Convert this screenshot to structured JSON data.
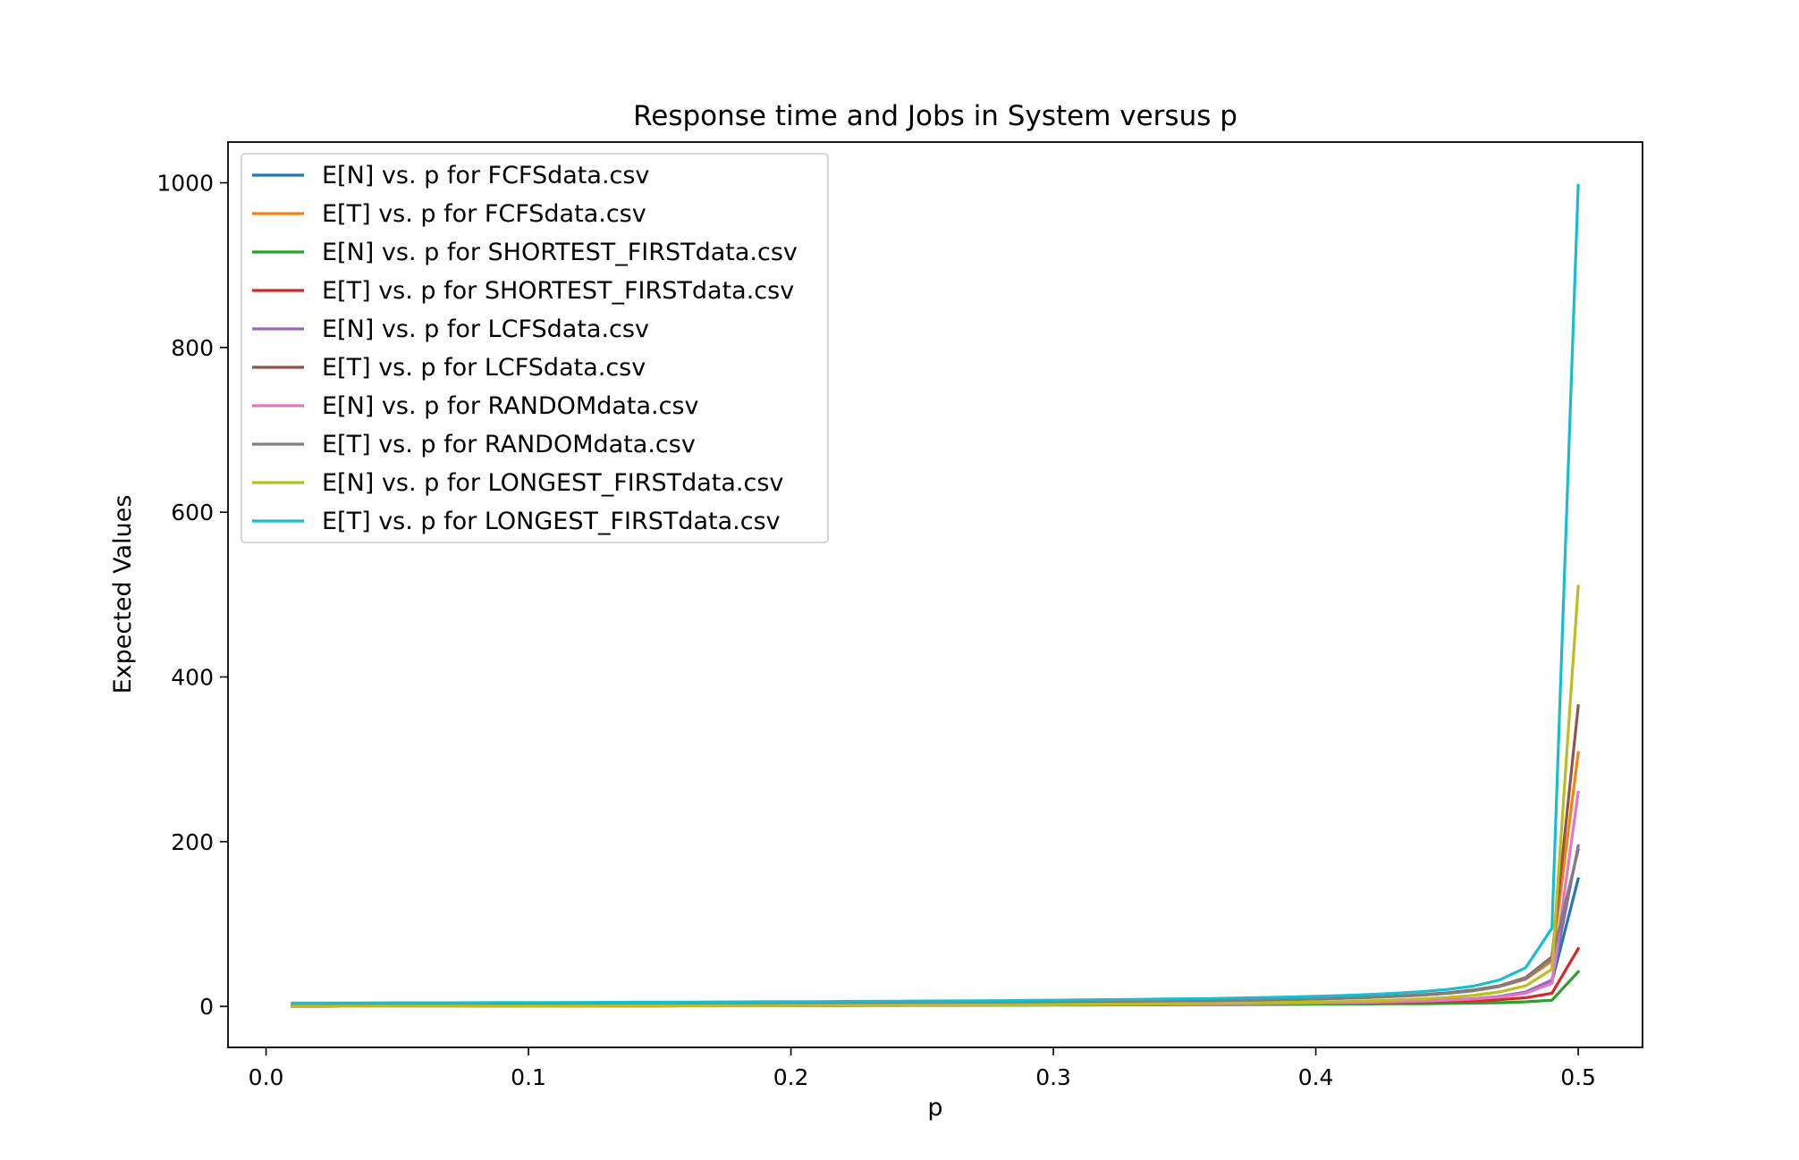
{
  "chart_data": {
    "type": "line",
    "title": "Response time and Jobs in System versus p",
    "xlabel": "p",
    "ylabel": "Expected Values",
    "xlim": [
      -0.0145,
      0.5245
    ],
    "ylim": [
      -49.8,
      1049.4
    ],
    "xticks": [
      0.0,
      0.1,
      0.2,
      0.3,
      0.4,
      0.5
    ],
    "xtick_labels": [
      "0.0",
      "0.1",
      "0.2",
      "0.3",
      "0.4",
      "0.5"
    ],
    "yticks": [
      0,
      200,
      400,
      600,
      800,
      1000
    ],
    "ytick_labels": [
      "0",
      "200",
      "400",
      "600",
      "800",
      "1000"
    ],
    "grid": false,
    "legend_position": "upper-left",
    "x": [
      0.01,
      0.02,
      0.03,
      0.04,
      0.05,
      0.06,
      0.07,
      0.08,
      0.09,
      0.1,
      0.11,
      0.12,
      0.13,
      0.14,
      0.15,
      0.16,
      0.17,
      0.18,
      0.19,
      0.2,
      0.21,
      0.22,
      0.23,
      0.24,
      0.25,
      0.26,
      0.27,
      0.28,
      0.29,
      0.3,
      0.31,
      0.32,
      0.33,
      0.34,
      0.35,
      0.36,
      0.37,
      0.38,
      0.39,
      0.4,
      0.41,
      0.42,
      0.43,
      0.44,
      0.45,
      0.46,
      0.47,
      0.48,
      0.49,
      0.5
    ],
    "series": [
      {
        "name": "E[N] vs. p for FCFSdata.csv",
        "color": "#1f77b4",
        "values": [
          0.1,
          0.1,
          0.2,
          0.2,
          0.2,
          0.3,
          0.3,
          0.4,
          0.4,
          0.5,
          0.5,
          0.6,
          0.6,
          0.7,
          0.7,
          0.8,
          0.9,
          0.9,
          1.0,
          1.1,
          1.1,
          1.2,
          1.3,
          1.4,
          1.5,
          1.6,
          1.7,
          1.8,
          1.9,
          2.0,
          2.1,
          2.3,
          2.4,
          2.6,
          2.8,
          3.0,
          3.2,
          3.5,
          3.8,
          4.1,
          4.5,
          5.0,
          5.6,
          6.4,
          7.4,
          8.9,
          11.5,
          16.5,
          30.0,
          155
        ]
      },
      {
        "name": "E[T] vs. p for FCFSdata.csv",
        "color": "#ff7f0e",
        "values": [
          2.0,
          2.1,
          2.1,
          2.2,
          2.2,
          2.3,
          2.3,
          2.4,
          2.5,
          2.5,
          2.6,
          2.7,
          2.7,
          2.8,
          2.9,
          3.0,
          3.1,
          3.2,
          3.3,
          3.4,
          3.5,
          3.6,
          3.7,
          3.9,
          4.0,
          4.2,
          4.3,
          4.5,
          4.7,
          4.9,
          5.1,
          5.4,
          5.7,
          6.0,
          6.3,
          6.7,
          7.1,
          7.6,
          8.2,
          8.9,
          9.7,
          10.7,
          12.0,
          13.6,
          15.8,
          19.0,
          24.0,
          33.0,
          55.0,
          308
        ]
      },
      {
        "name": "E[N] vs. p for SHORTEST_FIRSTdata.csv",
        "color": "#2ca02c",
        "values": [
          0.1,
          0.1,
          0.2,
          0.2,
          0.2,
          0.3,
          0.3,
          0.3,
          0.4,
          0.4,
          0.5,
          0.5,
          0.6,
          0.6,
          0.6,
          0.7,
          0.7,
          0.8,
          0.8,
          0.9,
          0.9,
          1.0,
          1.0,
          1.1,
          1.2,
          1.2,
          1.3,
          1.4,
          1.4,
          1.5,
          1.6,
          1.7,
          1.8,
          1.9,
          2.0,
          2.1,
          2.2,
          2.3,
          2.4,
          2.6,
          2.7,
          2.9,
          3.1,
          3.3,
          3.6,
          4.0,
          4.5,
          5.5,
          7.5,
          42
        ]
      },
      {
        "name": "E[T] vs. p for SHORTEST_FIRSTdata.csv",
        "color": "#d62728",
        "values": [
          2.0,
          2.0,
          2.1,
          2.1,
          2.1,
          2.2,
          2.2,
          2.2,
          2.3,
          2.3,
          2.3,
          2.4,
          2.4,
          2.5,
          2.5,
          2.5,
          2.6,
          2.6,
          2.7,
          2.7,
          2.8,
          2.8,
          2.9,
          2.9,
          3.0,
          3.0,
          3.1,
          3.2,
          3.2,
          3.3,
          3.4,
          3.5,
          3.6,
          3.7,
          3.8,
          3.9,
          4.0,
          4.2,
          4.3,
          4.5,
          4.7,
          4.9,
          5.2,
          5.6,
          6.1,
          6.8,
          8.0,
          10.5,
          16.0,
          70
        ]
      },
      {
        "name": "E[N] vs. p for LCFSdata.csv",
        "color": "#9467bd",
        "values": [
          0.1,
          0.1,
          0.2,
          0.2,
          0.2,
          0.3,
          0.3,
          0.4,
          0.4,
          0.5,
          0.5,
          0.6,
          0.6,
          0.7,
          0.7,
          0.8,
          0.9,
          0.9,
          1.0,
          1.1,
          1.1,
          1.2,
          1.3,
          1.4,
          1.5,
          1.6,
          1.7,
          1.8,
          1.9,
          2.0,
          2.2,
          2.3,
          2.5,
          2.6,
          2.8,
          3.0,
          3.3,
          3.5,
          3.9,
          4.2,
          4.6,
          5.1,
          5.8,
          6.6,
          7.7,
          9.3,
          12.0,
          17.5,
          32.0,
          195
        ]
      },
      {
        "name": "E[T] vs. p for LCFSdata.csv",
        "color": "#8c564b",
        "values": [
          2.0,
          2.1,
          2.1,
          2.2,
          2.2,
          2.3,
          2.3,
          2.4,
          2.5,
          2.5,
          2.6,
          2.7,
          2.7,
          2.8,
          2.9,
          3.0,
          3.1,
          3.2,
          3.3,
          3.4,
          3.5,
          3.6,
          3.8,
          3.9,
          4.1,
          4.2,
          4.4,
          4.6,
          4.8,
          5.0,
          5.2,
          5.5,
          5.8,
          6.1,
          6.5,
          6.9,
          7.3,
          7.8,
          8.4,
          9.1,
          10.0,
          11.0,
          12.4,
          14.1,
          16.4,
          19.8,
          25.0,
          35.0,
          60.0,
          365
        ]
      },
      {
        "name": "E[N] vs. p for RANDOMdata.csv",
        "color": "#e377c2",
        "values": [
          0.1,
          0.1,
          0.2,
          0.2,
          0.2,
          0.3,
          0.3,
          0.4,
          0.4,
          0.5,
          0.5,
          0.6,
          0.6,
          0.7,
          0.7,
          0.8,
          0.9,
          0.9,
          1.0,
          1.1,
          1.1,
          1.2,
          1.3,
          1.4,
          1.5,
          1.6,
          1.7,
          1.8,
          1.9,
          2.0,
          2.1,
          2.3,
          2.4,
          2.6,
          2.8,
          3.0,
          3.2,
          3.5,
          3.8,
          4.1,
          4.5,
          5.0,
          5.6,
          6.4,
          7.4,
          8.9,
          11.3,
          16.0,
          28.0,
          260
        ]
      },
      {
        "name": "E[T] vs. p for RANDOMdata.csv",
        "color": "#7f7f7f",
        "values": [
          2.0,
          2.1,
          2.1,
          2.2,
          2.2,
          2.3,
          2.3,
          2.4,
          2.5,
          2.5,
          2.6,
          2.7,
          2.7,
          2.8,
          2.9,
          3.0,
          3.1,
          3.2,
          3.3,
          3.4,
          3.5,
          3.6,
          3.7,
          3.9,
          4.0,
          4.2,
          4.3,
          4.5,
          4.7,
          4.9,
          5.1,
          5.4,
          5.7,
          6.0,
          6.3,
          6.7,
          7.1,
          7.6,
          8.2,
          8.9,
          9.7,
          10.7,
          12.0,
          13.6,
          15.8,
          19.0,
          24.5,
          34.0,
          58.0,
          190
        ]
      },
      {
        "name": "E[N] vs. p for LONGEST_FIRSTdata.csv",
        "color": "#bcbd22",
        "values": [
          0.1,
          0.1,
          0.2,
          0.2,
          0.2,
          0.3,
          0.3,
          0.4,
          0.4,
          0.5,
          0.5,
          0.6,
          0.6,
          0.7,
          0.8,
          0.8,
          0.9,
          1.0,
          1.0,
          1.1,
          1.2,
          1.3,
          1.4,
          1.5,
          1.6,
          1.7,
          1.8,
          2.0,
          2.1,
          2.3,
          2.4,
          2.6,
          2.8,
          3.1,
          3.3,
          3.6,
          3.9,
          4.3,
          4.8,
          5.3,
          5.9,
          6.7,
          7.7,
          9.0,
          10.8,
          13.4,
          17.5,
          25.0,
          45.0,
          510
        ]
      },
      {
        "name": "E[T] vs. p for LONGEST_FIRSTdata.csv",
        "color": "#17becf",
        "values": [
          4.0,
          4.1,
          4.1,
          4.2,
          4.3,
          4.3,
          4.4,
          4.5,
          4.6,
          4.6,
          4.7,
          4.8,
          4.9,
          5.0,
          5.1,
          5.2,
          5.3,
          5.4,
          5.6,
          5.7,
          5.8,
          6.0,
          6.1,
          6.3,
          6.5,
          6.6,
          6.8,
          7.0,
          7.3,
          7.5,
          7.8,
          8.1,
          8.4,
          8.8,
          9.2,
          9.6,
          10.1,
          10.7,
          11.4,
          12.2,
          13.1,
          14.3,
          15.8,
          17.8,
          20.5,
          24.5,
          32.0,
          47.0,
          95.0,
          997
        ]
      }
    ]
  }
}
